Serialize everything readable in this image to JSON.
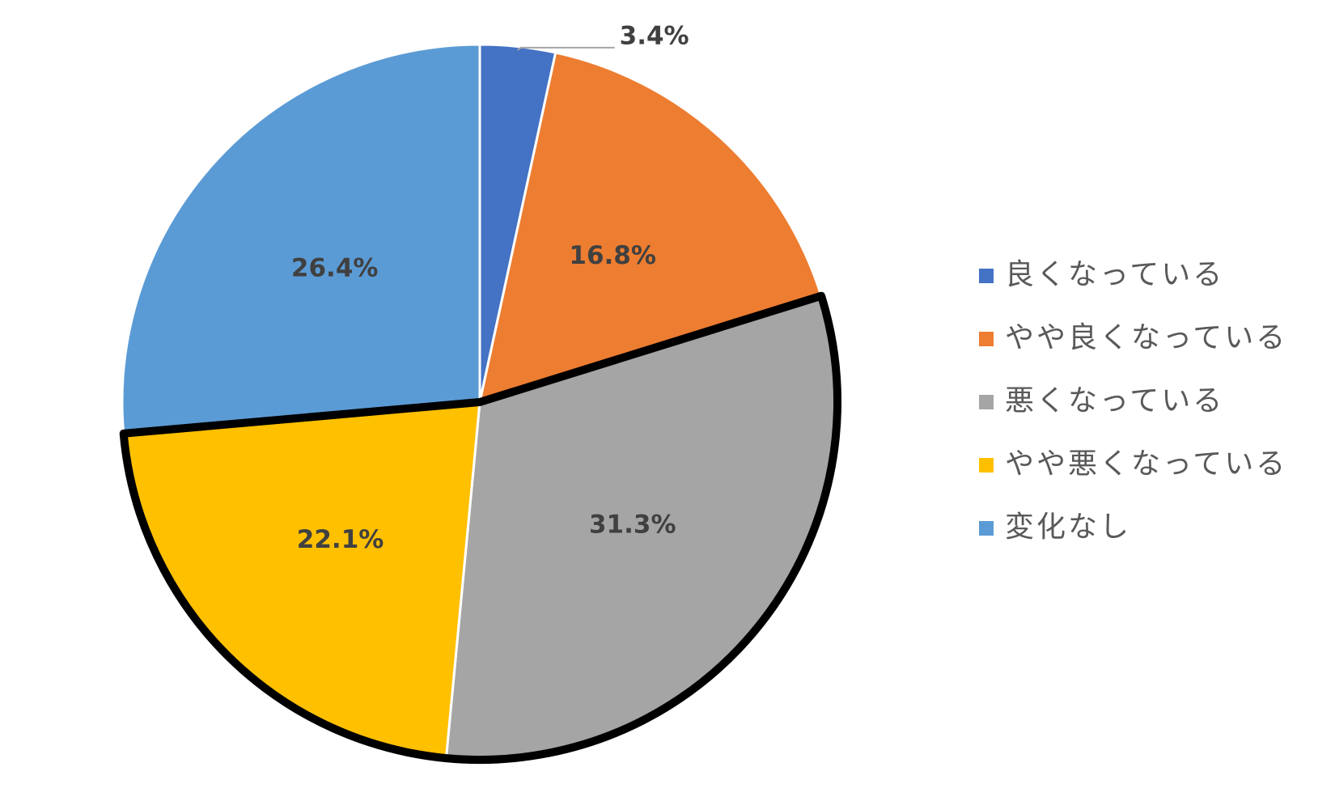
{
  "chart_data": {
    "type": "pie",
    "categories": [
      "良くなっている",
      "やや良くなっている",
      "悪くなっている",
      "やや悪くなっている",
      "変化なし"
    ],
    "values": [
      3.4,
      16.8,
      31.3,
      22.1,
      26.4
    ],
    "value_labels": [
      "3.4%",
      "16.8%",
      "31.3%",
      "22.1%",
      "26.4%"
    ],
    "colors": [
      "#4472c4",
      "#ed7d31",
      "#a5a5a5",
      "#ffc000",
      "#5b9bd5"
    ],
    "outline": [
      2,
      3
    ],
    "legend": "right"
  }
}
